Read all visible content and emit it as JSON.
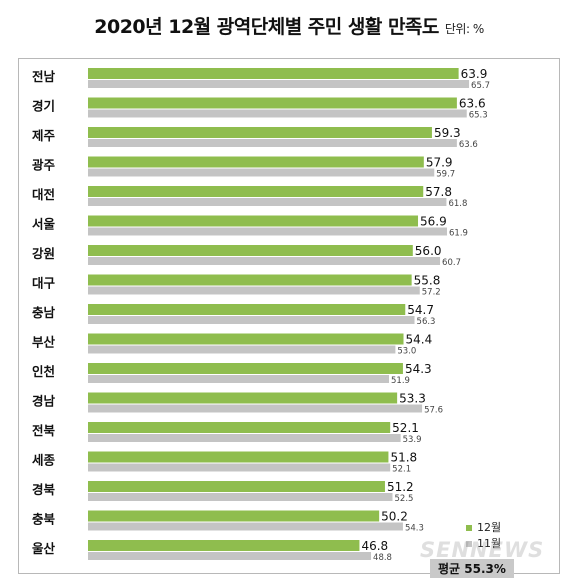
{
  "title": "2020년 12월 광역단체별 주민 생활 만족도",
  "unit_label": "단위: %",
  "watermark": "SENNEWS",
  "average_label": "평균 55.3%",
  "colors": {
    "dec": "#8fbd4e",
    "nov": "#c4c4c4"
  },
  "chart_data": {
    "type": "bar",
    "orientation": "horizontal",
    "title": "2020년 12월 광역단체별 주민 생활 만족도",
    "unit": "%",
    "categories": [
      "전남",
      "경기",
      "제주",
      "광주",
      "대전",
      "서울",
      "강원",
      "대구",
      "충남",
      "부산",
      "인천",
      "경남",
      "전북",
      "세종",
      "경북",
      "충북",
      "울산"
    ],
    "series": [
      {
        "name": "12월",
        "values": [
          63.9,
          63.6,
          59.3,
          57.9,
          57.8,
          56.9,
          56.0,
          55.8,
          54.7,
          54.4,
          54.3,
          53.3,
          52.1,
          51.8,
          51.2,
          50.2,
          46.8
        ]
      },
      {
        "name": "11월",
        "values": [
          65.7,
          65.3,
          63.6,
          59.7,
          61.8,
          61.9,
          60.7,
          57.2,
          56.3,
          53.0,
          51.9,
          57.6,
          53.9,
          52.1,
          52.5,
          54.3,
          48.8
        ]
      }
    ],
    "legend": "bottom-right",
    "average": 55.3
  }
}
